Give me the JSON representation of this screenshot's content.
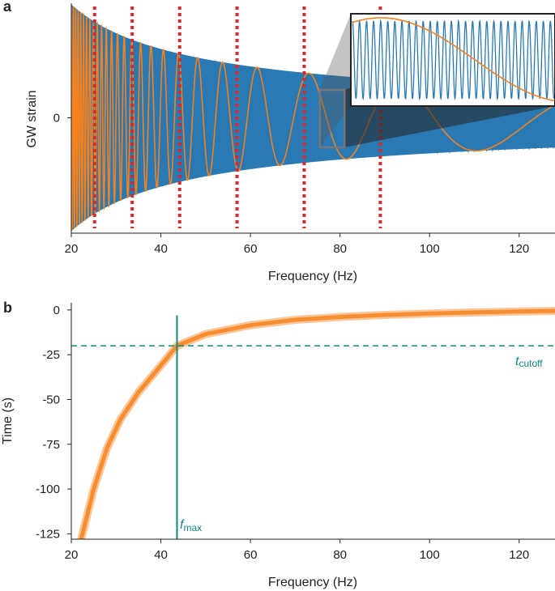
{
  "colors": {
    "blue": "#2a79b3",
    "orange": "#f5821f",
    "red": "#d42b2b",
    "teal": "#12877a",
    "inset_frame": "#777777"
  },
  "chart_data": [
    {
      "panel": "a",
      "type": "line",
      "xlabel": "Frequency (Hz)",
      "ylabel": "GW strain",
      "xlim": [
        20,
        128
      ],
      "xticks": [
        "20",
        "40",
        "60",
        "80",
        "100",
        "120"
      ],
      "yticks": [
        "0"
      ],
      "series": [
        {
          "color": "blue",
          "values_description_x": [
            20,
            128
          ],
          "amplitude_envelope": [
            [
              20,
              1.0
            ],
            [
              40,
              0.6
            ],
            [
              60,
              0.42
            ],
            [
              80,
              0.3
            ],
            [
              100,
              0.24
            ],
            [
              128,
              0.16
            ]
          ]
        },
        {
          "color": "orange",
          "amplitude_envelope": [
            [
              20,
              1.0
            ],
            [
              40,
              0.6
            ],
            [
              60,
              0.42
            ],
            [
              80,
              0.3
            ],
            [
              100,
              0.24
            ],
            [
              128,
              0.16
            ]
          ]
        }
      ],
      "vlines_red_dotted": [
        25.2,
        33.6,
        44.2,
        57.0,
        72.0,
        89.0
      ],
      "inset": {
        "xlim": [
          75.5,
          81.0
        ],
        "ylim": [
          -0.22,
          0.22
        ]
      },
      "grid": false
    },
    {
      "panel": "b",
      "type": "line",
      "xlabel": "Frequency (Hz)",
      "ylabel": "Time (s)",
      "xlim": [
        20,
        128
      ],
      "ylim": [
        -128,
        4
      ],
      "xticks": [
        "20",
        "40",
        "60",
        "80",
        "100",
        "120"
      ],
      "yticks": [
        "0",
        "-25",
        "-50",
        "-75",
        "-100",
        "-125"
      ],
      "curve": {
        "x": [
          22.2,
          25,
          28,
          31,
          35,
          40,
          43.6,
          50,
          60,
          70,
          80,
          90,
          100,
          110,
          120,
          128
        ],
        "y": [
          -128,
          -100,
          -77,
          -61,
          -46,
          -31,
          -20,
          -13.5,
          -8.5,
          -5.5,
          -3.9,
          -2.8,
          -2.0,
          -1.4,
          -0.9,
          -0.5
        ]
      },
      "t_cutoff": -20,
      "f_max": 43.6,
      "grid": false
    }
  ],
  "labels": {
    "panel_a": "a",
    "panel_b": "b",
    "t_cutoff_main": "t",
    "t_cutoff_sub": "cutoff",
    "f_max_main": "f",
    "f_max_sub": "max"
  }
}
